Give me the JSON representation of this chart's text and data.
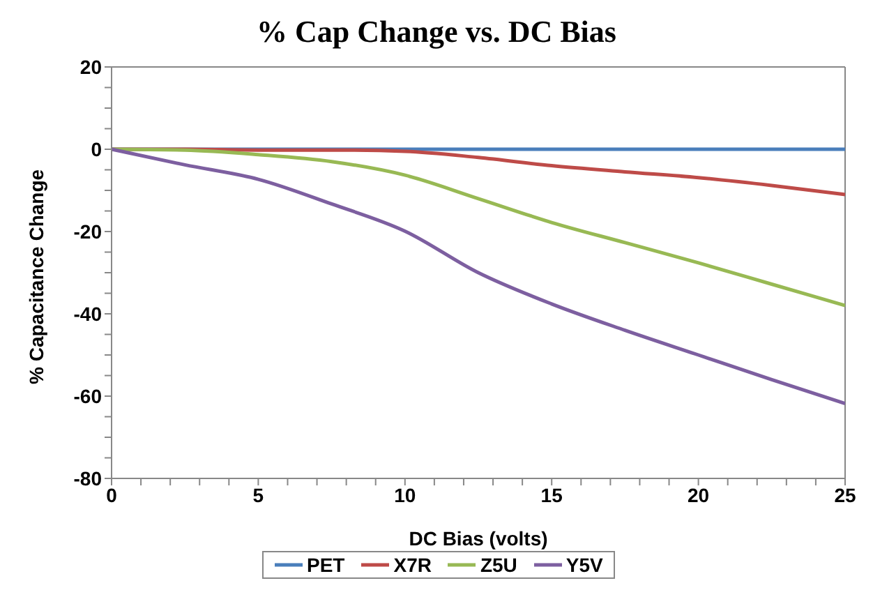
{
  "chart_data": {
    "type": "line",
    "title": "% Cap Change vs. DC Bias",
    "xlabel": "DC Bias (volts)",
    "ylabel": "% Capacitance Change",
    "x": [
      0,
      2.5,
      5,
      7.5,
      10,
      12.5,
      15,
      17.5,
      20,
      22.5,
      25
    ],
    "series": [
      {
        "name": "PET",
        "color": "#4a7ebb",
        "values": [
          0,
          0,
          0,
          0,
          0,
          0,
          0,
          0,
          0,
          0,
          0
        ]
      },
      {
        "name": "X7R",
        "color": "#be4b48",
        "values": [
          0,
          0,
          -0.2,
          -0.2,
          -0.5,
          -2,
          -4,
          -5.5,
          -6.9,
          -8.8,
          -11
        ]
      },
      {
        "name": "Z5U",
        "color": "#98b954",
        "values": [
          0,
          -0.2,
          -1.3,
          -3,
          -6.3,
          -12,
          -17.8,
          -22.7,
          -27.6,
          -32.8,
          -38
        ]
      },
      {
        "name": "Y5V",
        "color": "#7d5fa0",
        "values": [
          0,
          -3.8,
          -7.3,
          -13.3,
          -19.9,
          -30,
          -37.6,
          -44,
          -50,
          -56,
          -61.8
        ]
      }
    ],
    "xlim": [
      0,
      25
    ],
    "xticks": [
      0,
      {
        "value": 1,
        "label": null
      },
      {
        "value": 2,
        "label": null
      },
      {
        "value": 3,
        "label": null
      },
      {
        "value": 4,
        "label": null
      },
      5,
      {
        "value": 6,
        "label": null
      },
      {
        "value": 7,
        "label": null
      },
      {
        "value": 8,
        "label": null
      },
      {
        "value": 9,
        "label": null
      },
      10,
      {
        "value": 11,
        "label": null
      },
      {
        "value": 12,
        "label": null
      },
      {
        "value": 13,
        "label": null
      },
      {
        "value": 14,
        "label": null
      },
      15,
      {
        "value": 16,
        "label": null
      },
      {
        "value": 17,
        "label": null
      },
      {
        "value": 18,
        "label": null
      },
      {
        "value": 19,
        "label": null
      },
      20,
      {
        "value": 21,
        "label": null
      },
      {
        "value": 22,
        "label": null
      },
      {
        "value": 23,
        "label": null
      },
      {
        "value": 24,
        "label": null
      },
      25
    ],
    "ylim": [
      -80,
      20
    ],
    "yticks": [
      -80,
      {
        "value": -75,
        "label": null
      },
      {
        "value": -70,
        "label": null
      },
      {
        "value": -65,
        "label": null
      },
      -60,
      {
        "value": -55,
        "label": null
      },
      {
        "value": -50,
        "label": null
      },
      {
        "value": -45,
        "label": null
      },
      -40,
      {
        "value": -35,
        "label": null
      },
      {
        "value": -30,
        "label": null
      },
      {
        "value": -25,
        "label": null
      },
      -20,
      {
        "value": -15,
        "label": null
      },
      {
        "value": -10,
        "label": null
      },
      {
        "value": -5,
        "label": null
      },
      0,
      {
        "value": 5,
        "label": null
      },
      {
        "value": 10,
        "label": null
      },
      {
        "value": 15,
        "label": null
      },
      20
    ],
    "grid": false,
    "legend": "bottom",
    "marker": "none",
    "line_style": "solid"
  }
}
